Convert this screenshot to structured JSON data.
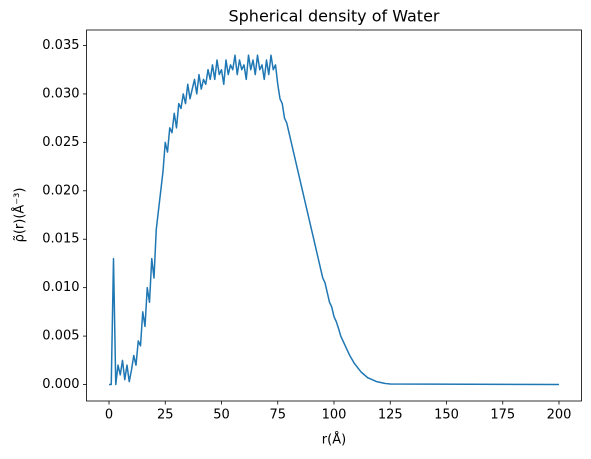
{
  "chart_data": {
    "type": "line",
    "title": "Spherical density of Water",
    "x_label": "r(Å)",
    "y_label": "ρ̃(r)(Å⁻³)",
    "x": [
      0,
      1,
      2,
      3,
      4,
      5,
      6,
      7,
      8,
      9,
      10,
      11,
      12,
      13,
      14,
      15,
      16,
      17,
      18,
      19,
      20,
      21,
      22,
      23,
      24,
      25,
      26,
      27,
      28,
      29,
      30,
      31,
      32,
      33,
      34,
      35,
      36,
      37,
      38,
      39,
      40,
      41,
      42,
      43,
      44,
      45,
      46,
      47,
      48,
      49,
      50,
      51,
      52,
      53,
      54,
      55,
      56,
      57,
      58,
      59,
      60,
      61,
      62,
      63,
      64,
      65,
      66,
      67,
      68,
      69,
      70,
      71,
      72,
      73,
      74,
      75,
      76,
      77,
      78,
      79,
      80,
      81,
      82,
      83,
      84,
      85,
      86,
      87,
      88,
      89,
      90,
      91,
      92,
      93,
      94,
      95,
      96,
      97,
      98,
      99,
      100,
      101,
      102,
      103,
      104,
      105,
      106,
      107,
      108,
      109,
      110,
      111,
      112,
      113,
      114,
      115,
      116,
      117,
      118,
      119,
      120,
      121,
      122,
      123,
      124,
      125,
      200
    ],
    "series": [
      {
        "name": "Water",
        "color": "#1f77b4",
        "values": [
          0,
          0,
          0.013,
          0,
          0.002,
          0.001,
          0.0025,
          0.0005,
          0.002,
          0.0003,
          0.0015,
          0.003,
          0.002,
          0.0045,
          0.004,
          0.0075,
          0.006,
          0.01,
          0.0085,
          0.013,
          0.011,
          0.016,
          0.018,
          0.02,
          0.022,
          0.025,
          0.024,
          0.0265,
          0.026,
          0.028,
          0.0265,
          0.029,
          0.0285,
          0.03,
          0.029,
          0.031,
          0.0295,
          0.0305,
          0.0315,
          0.03,
          0.032,
          0.0305,
          0.0315,
          0.031,
          0.0325,
          0.0315,
          0.033,
          0.0315,
          0.0335,
          0.032,
          0.0325,
          0.031,
          0.0335,
          0.032,
          0.033,
          0.0325,
          0.034,
          0.032,
          0.0335,
          0.0325,
          0.033,
          0.0315,
          0.034,
          0.0325,
          0.0335,
          0.032,
          0.034,
          0.0325,
          0.033,
          0.0315,
          0.0335,
          0.032,
          0.034,
          0.0325,
          0.033,
          0.031,
          0.0295,
          0.029,
          0.0275,
          0.027,
          0.026,
          0.025,
          0.024,
          0.023,
          0.022,
          0.021,
          0.02,
          0.019,
          0.018,
          0.017,
          0.016,
          0.015,
          0.014,
          0.013,
          0.012,
          0.011,
          0.0105,
          0.0095,
          0.0085,
          0.008,
          0.007,
          0.0065,
          0.0058,
          0.005,
          0.0045,
          0.004,
          0.0035,
          0.003,
          0.0026,
          0.0022,
          0.0019,
          0.0016,
          0.0013,
          0.0011,
          0.0009,
          0.0007,
          0.0006,
          0.0005,
          0.0004,
          0.0003,
          0.00025,
          0.0002,
          0.00015,
          0.0001,
          8e-05,
          5e-05,
          0
        ]
      }
    ],
    "xlim": [
      -10,
      210
    ],
    "ylim": [
      -0.0017,
      0.0366
    ],
    "xticks": [
      0,
      25,
      50,
      75,
      100,
      125,
      150,
      175,
      200
    ],
    "yticks": [
      {
        "value": 0,
        "label": "0.000"
      },
      {
        "value": 0.005,
        "label": "0.005"
      },
      {
        "value": 0.01,
        "label": "0.010"
      },
      {
        "value": 0.015,
        "label": "0.015"
      },
      {
        "value": 0.02,
        "label": "0.020"
      },
      {
        "value": 0.025,
        "label": "0.025"
      },
      {
        "value": 0.03,
        "label": "0.030"
      },
      {
        "value": 0.035,
        "label": "0.035"
      }
    ],
    "grid": false
  }
}
